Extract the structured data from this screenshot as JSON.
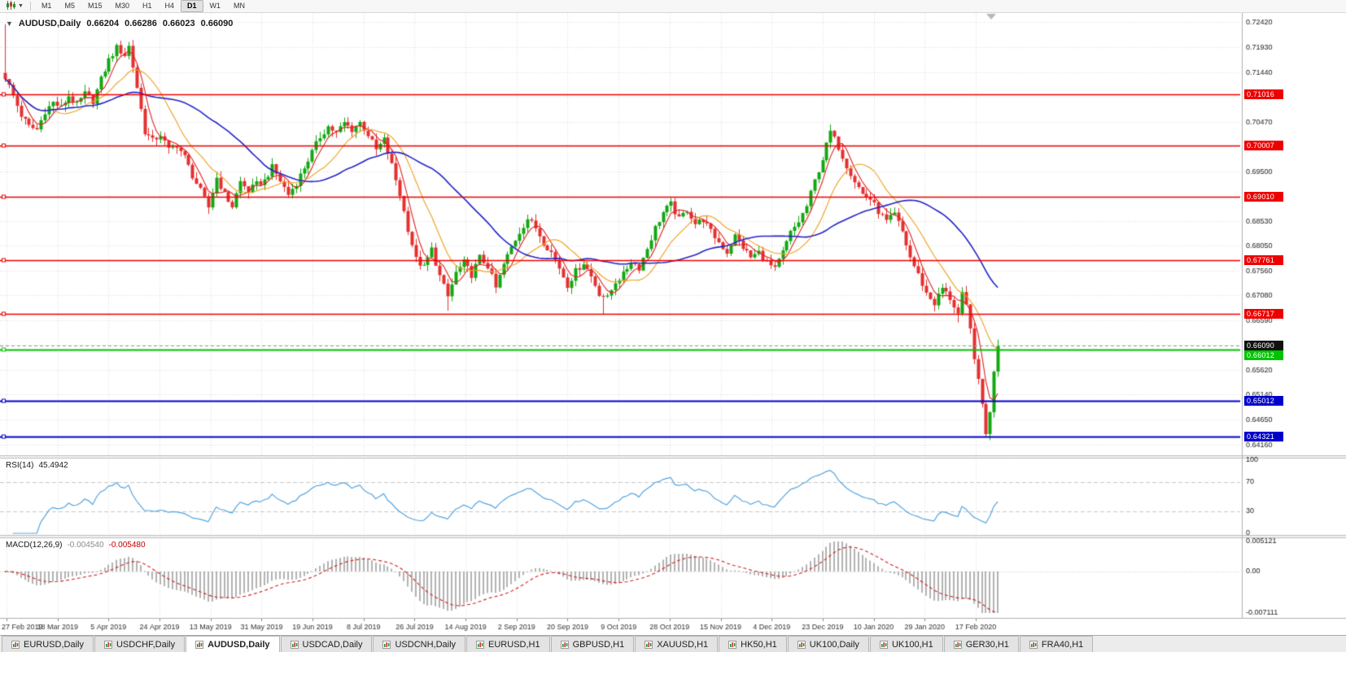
{
  "toolbar": {
    "timeframes": [
      "M1",
      "M5",
      "M15",
      "M30",
      "H1",
      "H4",
      "D1",
      "W1",
      "MN"
    ],
    "active_timeframe": "D1"
  },
  "tabs": [
    {
      "label": "EURUSD,Daily",
      "active": false
    },
    {
      "label": "USDCHF,Daily",
      "active": false
    },
    {
      "label": "AUDUSD,Daily",
      "active": true
    },
    {
      "label": "USDCAD,Daily",
      "active": false
    },
    {
      "label": "USDCNH,Daily",
      "active": false
    },
    {
      "label": "EURUSD,H1",
      "active": false
    },
    {
      "label": "GBPUSD,H1",
      "active": false
    },
    {
      "label": "XAUUSD,H1",
      "active": false
    },
    {
      "label": "HK50,H1",
      "active": false
    },
    {
      "label": "UK100,Daily",
      "active": false
    },
    {
      "label": "UK100,H1",
      "active": false
    },
    {
      "label": "GER30,H1",
      "active": false
    },
    {
      "label": "FRA40,H1",
      "active": false
    }
  ],
  "chart_data": {
    "type": "candlestick",
    "symbol": "AUDUSD",
    "timeframe": "Daily",
    "symbol_title": "AUDUSD,Daily",
    "ohlc_display": {
      "o": "0.66204",
      "h": "0.66286",
      "l": "0.66023",
      "c": "0.66090"
    },
    "n_candles": 250,
    "price_scale": {
      "top": 0.726,
      "bottom": 0.6395
    },
    "price_axis_ticks": [
      "0.72420",
      "0.71930",
      "0.71440",
      "0.70960",
      "0.70470",
      "0.69990",
      "0.69500",
      "0.69010",
      "0.68530",
      "0.68050",
      "0.67560",
      "0.67080",
      "0.66590",
      "0.66110",
      "0.65620",
      "0.65140",
      "0.64650",
      "0.64160"
    ],
    "time_axis_labels": [
      "27 Feb 2019",
      "18 Mar 2019",
      "5 Apr 2019",
      "24 Apr 2019",
      "13 May 2019",
      "31 May 2019",
      "19 Jun 2019",
      "8 Jul 2019",
      "26 Jul 2019",
      "14 Aug 2019",
      "2 Sep 2019",
      "20 Sep 2019",
      "9 Oct 2019",
      "28 Oct 2019",
      "15 Nov 2019",
      "4 Dec 2019",
      "23 Dec 2019",
      "10 Jan 2020",
      "29 Jan 2020",
      "17 Feb 2020"
    ],
    "horizontal_levels": [
      {
        "price": 0.71016,
        "label": "0.71016",
        "color": "#ee0000",
        "width": 1.5,
        "kind": "resistance"
      },
      {
        "price": 0.70007,
        "label": "0.70007",
        "color": "#ee0000",
        "width": 1.5,
        "kind": "resistance"
      },
      {
        "price": 0.6901,
        "label": "0.69010",
        "color": "#ee0000",
        "width": 1.5,
        "kind": "resistance"
      },
      {
        "price": 0.67761,
        "label": "0.67761",
        "color": "#ee0000",
        "width": 1.5,
        "kind": "resistance"
      },
      {
        "price": 0.66717,
        "label": "0.66717",
        "color": "#ee0000",
        "width": 1.5,
        "kind": "resistance"
      },
      {
        "price": 0.66012,
        "label": "0.66012",
        "color": "#00c400",
        "width": 2,
        "kind": "level"
      },
      {
        "price": 0.65012,
        "label": "0.65012",
        "color": "#0000cc",
        "width": 2,
        "kind": "support"
      },
      {
        "price": 0.64321,
        "label": "0.64321",
        "color": "#0000cc",
        "width": 2,
        "kind": "support"
      }
    ],
    "bid": {
      "price": 0.6609,
      "label": "0.66090",
      "color": "#111111"
    },
    "candle_up_color": "#12a812",
    "candle_down_color": "#e43030",
    "moving_averages": [
      {
        "period": 5,
        "color": "#e02020"
      },
      {
        "period": 13,
        "color": "#eea11e"
      },
      {
        "period": 34,
        "color": "#2424c8"
      }
    ],
    "candles_close_anchors": [
      [
        0,
        0.7135
      ],
      [
        2,
        0.7098
      ],
      [
        4,
        0.706
      ],
      [
        6,
        0.7038
      ],
      [
        8,
        0.7032
      ],
      [
        10,
        0.7068
      ],
      [
        12,
        0.7085
      ],
      [
        14,
        0.7075
      ],
      [
        16,
        0.7098
      ],
      [
        18,
        0.708
      ],
      [
        20,
        0.7102
      ],
      [
        22,
        0.7088
      ],
      [
        24,
        0.713
      ],
      [
        26,
        0.7168
      ],
      [
        28,
        0.7192
      ],
      [
        30,
        0.7178
      ],
      [
        31,
        0.7195
      ],
      [
        33,
        0.7115
      ],
      [
        35,
        0.7028
      ],
      [
        37,
        0.701
      ],
      [
        39,
        0.7022
      ],
      [
        41,
        0.6992
      ],
      [
        43,
        0.7002
      ],
      [
        45,
        0.6978
      ],
      [
        47,
        0.6942
      ],
      [
        49,
        0.6912
      ],
      [
        51,
        0.688
      ],
      [
        53,
        0.6938
      ],
      [
        55,
        0.6905
      ],
      [
        57,
        0.6882
      ],
      [
        59,
        0.693
      ],
      [
        61,
        0.6912
      ],
      [
        63,
        0.6925
      ],
      [
        65,
        0.6932
      ],
      [
        67,
        0.6958
      ],
      [
        69,
        0.6932
      ],
      [
        71,
        0.6905
      ],
      [
        73,
        0.6928
      ],
      [
        75,
        0.6958
      ],
      [
        77,
        0.6988
      ],
      [
        79,
        0.7018
      ],
      [
        81,
        0.7038
      ],
      [
        83,
        0.7025
      ],
      [
        85,
        0.7045
      ],
      [
        87,
        0.7032
      ],
      [
        89,
        0.7046
      ],
      [
        91,
        0.7022
      ],
      [
        93,
        0.6992
      ],
      [
        95,
        0.7012
      ],
      [
        97,
        0.6962
      ],
      [
        99,
        0.6905
      ],
      [
        101,
        0.6838
      ],
      [
        103,
        0.6778
      ],
      [
        105,
        0.6762
      ],
      [
        107,
        0.6798
      ],
      [
        109,
        0.6745
      ],
      [
        111,
        0.6705
      ],
      [
        113,
        0.6752
      ],
      [
        115,
        0.6772
      ],
      [
        117,
        0.6748
      ],
      [
        119,
        0.6782
      ],
      [
        121,
        0.6765
      ],
      [
        123,
        0.6722
      ],
      [
        125,
        0.6768
      ],
      [
        127,
        0.6802
      ],
      [
        129,
        0.6832
      ],
      [
        131,
        0.6858
      ],
      [
        133,
        0.684
      ],
      [
        135,
        0.6812
      ],
      [
        137,
        0.6792
      ],
      [
        139,
        0.6762
      ],
      [
        141,
        0.6728
      ],
      [
        143,
        0.6755
      ],
      [
        145,
        0.6772
      ],
      [
        147,
        0.6745
      ],
      [
        149,
        0.6712
      ],
      [
        151,
        0.6702
      ],
      [
        153,
        0.6735
      ],
      [
        155,
        0.6748
      ],
      [
        157,
        0.6775
      ],
      [
        159,
        0.6762
      ],
      [
        161,
        0.68
      ],
      [
        163,
        0.684
      ],
      [
        165,
        0.687
      ],
      [
        167,
        0.6886
      ],
      [
        169,
        0.6856
      ],
      [
        171,
        0.6876
      ],
      [
        173,
        0.6848
      ],
      [
        175,
        0.6856
      ],
      [
        177,
        0.6832
      ],
      [
        179,
        0.6812
      ],
      [
        181,
        0.6792
      ],
      [
        183,
        0.6824
      ],
      [
        185,
        0.6802
      ],
      [
        187,
        0.6782
      ],
      [
        189,
        0.6792
      ],
      [
        191,
        0.6772
      ],
      [
        193,
        0.6758
      ],
      [
        195,
        0.6792
      ],
      [
        197,
        0.683
      ],
      [
        199,
        0.6852
      ],
      [
        201,
        0.6882
      ],
      [
        203,
        0.6932
      ],
      [
        205,
        0.6975
      ],
      [
        207,
        0.7028
      ],
      [
        209,
        0.6998
      ],
      [
        211,
        0.6962
      ],
      [
        213,
        0.6932
      ],
      [
        215,
        0.6906
      ],
      [
        217,
        0.6896
      ],
      [
        219,
        0.6872
      ],
      [
        221,
        0.6852
      ],
      [
        223,
        0.6866
      ],
      [
        225,
        0.6832
      ],
      [
        227,
        0.6782
      ],
      [
        229,
        0.6748
      ],
      [
        231,
        0.6712
      ],
      [
        233,
        0.6692
      ],
      [
        235,
        0.6722
      ],
      [
        237,
        0.6702
      ],
      [
        239,
        0.6672
      ],
      [
        240,
        0.6712
      ],
      [
        241,
        0.6688
      ],
      [
        242,
        0.6642
      ],
      [
        243,
        0.6585
      ],
      [
        244,
        0.6542
      ],
      [
        245,
        0.6495
      ],
      [
        246,
        0.6438
      ],
      [
        247,
        0.6478
      ],
      [
        248,
        0.656
      ],
      [
        249,
        0.6609
      ]
    ],
    "wick_overrides": [
      [
        0,
        "h",
        0.7238
      ],
      [
        29,
        "h",
        0.7206
      ],
      [
        111,
        "l",
        0.6678
      ],
      [
        150,
        "l",
        0.6671
      ],
      [
        207,
        "h",
        0.7042
      ],
      [
        239,
        "l",
        0.6655
      ],
      [
        246,
        "l",
        0.6434
      ]
    ],
    "rsi": {
      "name": "RSI(14)",
      "period": 14,
      "value_display": "45.4942",
      "line_color": "#55a5e0",
      "levels": [
        100,
        70,
        30,
        0
      ],
      "level_lines": [
        70,
        30
      ]
    },
    "macd": {
      "name": "MACD(12,26,9)",
      "params": "12,26,9",
      "values_display": [
        "-0.004540",
        "-0.005480"
      ],
      "axis_labels": [
        "0.005121",
        "0.00",
        "-0.007111"
      ],
      "axis_max": 0.005121,
      "axis_min": -0.007111,
      "histogram_color": "#b2b2b2",
      "signal_color": "#d42020"
    }
  }
}
